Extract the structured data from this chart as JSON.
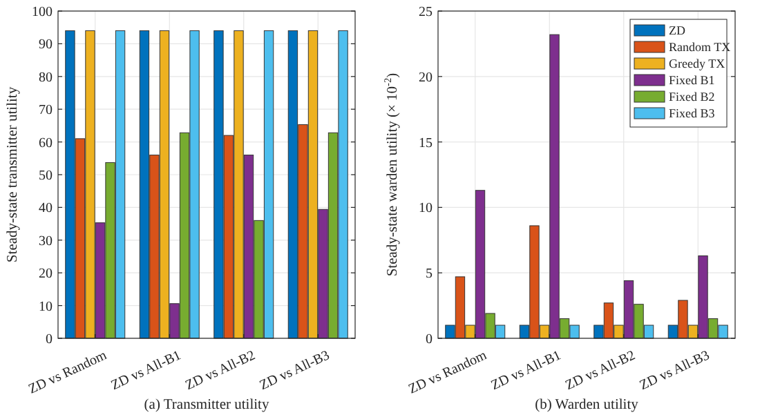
{
  "chart_data": [
    {
      "type": "bar",
      "xlabel": "(a) Transmitter utility",
      "ylabel": "Steady-state transmitter utility",
      "categories": [
        "ZD vs Random",
        "ZD vs All-B1",
        "ZD vs All-B2",
        "ZD vs All-B3"
      ],
      "ylim": [
        0,
        100
      ],
      "yticks": [
        0,
        10,
        20,
        30,
        40,
        50,
        60,
        70,
        80,
        90,
        100
      ],
      "grid": true,
      "legend": false,
      "series": [
        {
          "color": "#0072bd",
          "values": [
            94,
            94,
            94,
            94
          ]
        },
        {
          "color": "#d95319",
          "values": [
            61,
            56,
            62,
            65.3
          ]
        },
        {
          "color": "#edb120",
          "values": [
            94,
            94,
            94,
            94
          ]
        },
        {
          "color": "#7e2f8e",
          "values": [
            35.3,
            10.6,
            56,
            39.4
          ]
        },
        {
          "color": "#77ac30",
          "values": [
            53.7,
            62.8,
            36,
            62.8
          ]
        },
        {
          "color": "#4dbeee",
          "values": [
            94,
            94,
            94,
            94
          ]
        }
      ]
    },
    {
      "type": "bar",
      "xlabel": "(b) Warden utility",
      "ylabel": "Steady-state warden utility (× 10$^{-2}$)",
      "categories": [
        "ZD vs Random",
        "ZD vs All-B1",
        "ZD vs All-B2",
        "ZD vs All-B3"
      ],
      "ylim": [
        0,
        25
      ],
      "yticks": [
        0,
        5,
        10,
        15,
        20,
        25
      ],
      "grid": true,
      "legend": "top right",
      "series": [
        {
          "name": "ZD",
          "color": "#0072bd",
          "values": [
            1,
            1,
            1,
            1
          ]
        },
        {
          "name": "Random TX",
          "color": "#d95319",
          "values": [
            4.7,
            8.6,
            2.7,
            2.9
          ]
        },
        {
          "name": "Greedy TX",
          "color": "#edb120",
          "values": [
            1,
            1,
            1,
            1
          ]
        },
        {
          "name": "Fixed B1",
          "color": "#7e2f8e",
          "values": [
            11.3,
            23.2,
            4.4,
            6.3
          ]
        },
        {
          "name": "Fixed B2",
          "color": "#77ac30",
          "values": [
            1.9,
            1.5,
            2.6,
            1.5
          ]
        },
        {
          "name": "Fixed B3",
          "color": "#4dbeee",
          "values": [
            1,
            1,
            1,
            1
          ]
        }
      ]
    }
  ]
}
